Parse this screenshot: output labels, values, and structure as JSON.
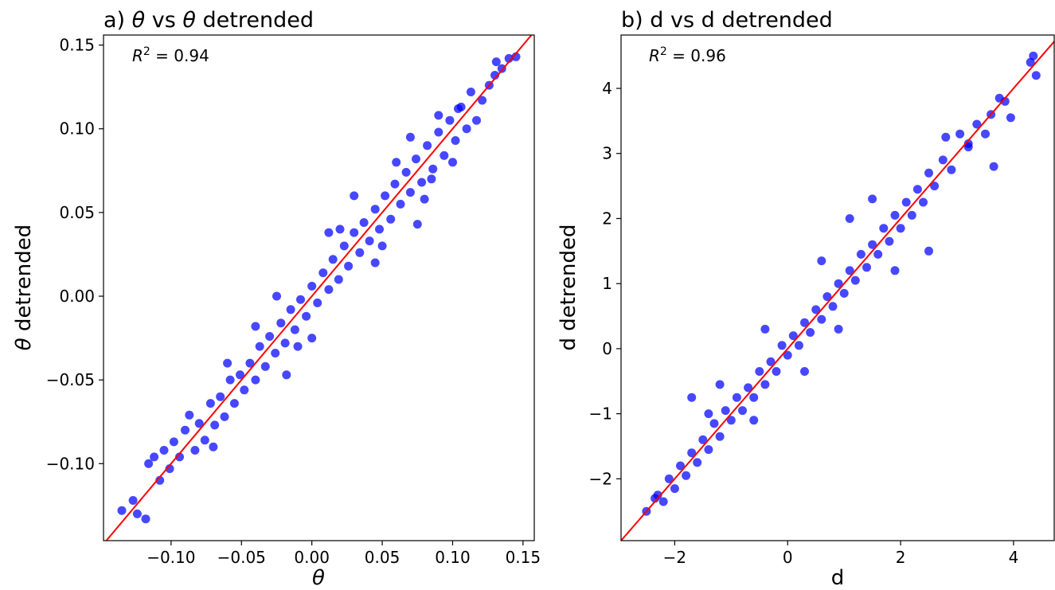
{
  "chart_data": [
    {
      "type": "scatter",
      "title_prefix": "a) ",
      "title_sym1": "θ",
      "title_mid": " vs ",
      "title_sym2": "θ",
      "title_suffix": " detrended",
      "xlabel_sym": "θ",
      "xlabel_text": "",
      "ylabel_sym": "θ",
      "ylabel_text": " detrended",
      "annotation": {
        "var": "R",
        "exp": "2",
        "rest": " = 0.94"
      },
      "xlim": [
        -0.148,
        0.158
      ],
      "ylim": [
        -0.146,
        0.156
      ],
      "xticks": [
        -0.1,
        -0.05,
        0.0,
        0.05,
        0.1,
        0.15
      ],
      "xtick_labels": [
        "−0.10",
        "−0.05",
        "0.00",
        "0.05",
        "0.10",
        "0.15"
      ],
      "yticks": [
        -0.1,
        -0.05,
        0.0,
        0.05,
        0.1,
        0.15
      ],
      "ytick_labels": [
        "−0.10",
        "−0.05",
        "0.00",
        "0.05",
        "0.10",
        "0.15"
      ],
      "point_color": "#0000ff",
      "line_color": "#ff0000",
      "fit_line": {
        "slope": 1,
        "intercept": 0
      },
      "series": [
        {
          "points": [
            [
              -0.135,
              -0.128
            ],
            [
              -0.127,
              -0.122
            ],
            [
              -0.124,
              -0.13
            ],
            [
              -0.118,
              -0.133
            ],
            [
              -0.116,
              -0.1
            ],
            [
              -0.112,
              -0.096
            ],
            [
              -0.108,
              -0.11
            ],
            [
              -0.105,
              -0.092
            ],
            [
              -0.101,
              -0.103
            ],
            [
              -0.098,
              -0.087
            ],
            [
              -0.094,
              -0.096
            ],
            [
              -0.09,
              -0.08
            ],
            [
              -0.087,
              -0.071
            ],
            [
              -0.083,
              -0.092
            ],
            [
              -0.08,
              -0.076
            ],
            [
              -0.076,
              -0.086
            ],
            [
              -0.072,
              -0.064
            ],
            [
              -0.069,
              -0.077
            ],
            [
              -0.065,
              -0.06
            ],
            [
              -0.062,
              -0.072
            ],
            [
              -0.058,
              -0.05
            ],
            [
              -0.055,
              -0.064
            ],
            [
              -0.051,
              -0.047
            ],
            [
              -0.048,
              -0.056
            ],
            [
              -0.044,
              -0.04
            ],
            [
              -0.04,
              -0.05
            ],
            [
              -0.037,
              -0.03
            ],
            [
              -0.033,
              -0.042
            ],
            [
              -0.03,
              -0.024
            ],
            [
              -0.026,
              -0.034
            ],
            [
              -0.022,
              -0.016
            ],
            [
              -0.019,
              -0.028
            ],
            [
              -0.015,
              -0.008
            ],
            [
              -0.012,
              -0.02
            ],
            [
              -0.008,
              -0.002
            ],
            [
              -0.004,
              -0.012
            ],
            [
              0.0,
              0.006
            ],
            [
              0.004,
              -0.004
            ],
            [
              0.008,
              0.014
            ],
            [
              0.012,
              0.004
            ],
            [
              0.015,
              0.022
            ],
            [
              0.019,
              0.01
            ],
            [
              0.023,
              0.03
            ],
            [
              0.026,
              0.018
            ],
            [
              0.03,
              0.038
            ],
            [
              0.034,
              0.026
            ],
            [
              0.037,
              0.044
            ],
            [
              0.041,
              0.033
            ],
            [
              0.045,
              0.052
            ],
            [
              0.048,
              0.04
            ],
            [
              0.052,
              0.06
            ],
            [
              0.056,
              0.046
            ],
            [
              0.059,
              0.067
            ],
            [
              0.063,
              0.055
            ],
            [
              0.067,
              0.074
            ],
            [
              0.07,
              0.062
            ],
            [
              0.074,
              0.082
            ],
            [
              0.078,
              0.068
            ],
            [
              0.082,
              0.09
            ],
            [
              0.086,
              0.076
            ],
            [
              0.09,
              0.098
            ],
            [
              0.094,
              0.084
            ],
            [
              0.098,
              0.105
            ],
            [
              0.102,
              0.093
            ],
            [
              0.106,
              0.113
            ],
            [
              0.11,
              0.1
            ],
            [
              0.113,
              0.122
            ],
            [
              0.117,
              0.105
            ],
            [
              0.121,
              0.117
            ],
            [
              0.126,
              0.126
            ],
            [
              0.13,
              0.132
            ],
            [
              0.135,
              0.136
            ],
            [
              0.14,
              0.142
            ],
            [
              0.145,
              0.143
            ],
            [
              0.131,
              0.14
            ],
            [
              -0.04,
              -0.018
            ],
            [
              -0.01,
              -0.03
            ],
            [
              0.02,
              0.04
            ],
            [
              0.05,
              0.03
            ],
            [
              0.06,
              0.08
            ],
            [
              0.08,
              0.058
            ],
            [
              -0.06,
              -0.04
            ],
            [
              -0.07,
              -0.09
            ],
            [
              0.03,
              0.06
            ],
            [
              0.0,
              -0.025
            ],
            [
              -0.025,
              0.0
            ],
            [
              0.045,
              0.02
            ],
            [
              0.07,
              0.095
            ],
            [
              0.085,
              0.07
            ],
            [
              0.1,
              0.08
            ],
            [
              0.104,
              0.112
            ],
            [
              0.09,
              0.108
            ],
            [
              0.075,
              0.043
            ],
            [
              0.012,
              0.038
            ],
            [
              -0.018,
              -0.047
            ]
          ]
        }
      ]
    },
    {
      "type": "scatter",
      "title_prefix": "b) ",
      "title_sym1": "",
      "title_mid": "d vs d",
      "title_sym2": "",
      "title_suffix": " detrended",
      "xlabel_sym": "",
      "xlabel_text": "d",
      "ylabel_sym": "",
      "ylabel_text": "d detrended",
      "annotation": {
        "var": "R",
        "exp": "2",
        "rest": " = 0.96"
      },
      "xlim": [
        -2.95,
        4.72
      ],
      "ylim": [
        -2.95,
        4.82
      ],
      "xticks": [
        -2,
        0,
        2,
        4
      ],
      "xtick_labels": [
        "−2",
        "0",
        "2",
        "4"
      ],
      "yticks": [
        -2,
        -1,
        0,
        1,
        2,
        3,
        4
      ],
      "ytick_labels": [
        "−2",
        "−1",
        "0",
        "1",
        "2",
        "3",
        "4"
      ],
      "point_color": "#0000ff",
      "line_color": "#ff0000",
      "fit_line": {
        "slope": 1,
        "intercept": 0
      },
      "series": [
        {
          "points": [
            [
              -2.5,
              -2.5
            ],
            [
              -2.35,
              -2.3
            ],
            [
              -2.2,
              -2.35
            ],
            [
              -2.1,
              -2.0
            ],
            [
              -2.0,
              -2.15
            ],
            [
              -1.9,
              -1.8
            ],
            [
              -1.8,
              -1.95
            ],
            [
              -1.7,
              -1.6
            ],
            [
              -1.6,
              -1.75
            ],
            [
              -1.5,
              -1.4
            ],
            [
              -1.4,
              -1.55
            ],
            [
              -1.3,
              -1.15
            ],
            [
              -1.2,
              -1.35
            ],
            [
              -1.1,
              -0.95
            ],
            [
              -1.0,
              -1.1
            ],
            [
              -0.9,
              -0.75
            ],
            [
              -0.8,
              -0.95
            ],
            [
              -0.7,
              -0.6
            ],
            [
              -0.6,
              -0.75
            ],
            [
              -0.5,
              -0.35
            ],
            [
              -0.4,
              -0.55
            ],
            [
              -0.3,
              -0.2
            ],
            [
              -0.2,
              -0.35
            ],
            [
              -0.1,
              0.05
            ],
            [
              0.0,
              -0.1
            ],
            [
              0.1,
              0.2
            ],
            [
              0.2,
              0.05
            ],
            [
              0.3,
              0.4
            ],
            [
              0.4,
              0.25
            ],
            [
              0.5,
              0.6
            ],
            [
              0.6,
              0.45
            ],
            [
              0.7,
              0.8
            ],
            [
              0.8,
              0.65
            ],
            [
              0.9,
              1.0
            ],
            [
              1.0,
              0.85
            ],
            [
              1.1,
              1.2
            ],
            [
              1.2,
              1.05
            ],
            [
              1.3,
              1.45
            ],
            [
              1.4,
              1.25
            ],
            [
              1.5,
              1.6
            ],
            [
              1.6,
              1.45
            ],
            [
              1.7,
              1.85
            ],
            [
              1.8,
              1.65
            ],
            [
              1.9,
              2.05
            ],
            [
              2.0,
              1.85
            ],
            [
              2.1,
              2.25
            ],
            [
              2.2,
              2.05
            ],
            [
              2.3,
              2.45
            ],
            [
              2.4,
              2.25
            ],
            [
              2.5,
              2.7
            ],
            [
              2.6,
              2.5
            ],
            [
              2.75,
              2.9
            ],
            [
              2.9,
              2.75
            ],
            [
              3.05,
              3.3
            ],
            [
              3.2,
              3.1
            ],
            [
              3.35,
              3.45
            ],
            [
              3.5,
              3.3
            ],
            [
              3.6,
              3.6
            ],
            [
              3.75,
              3.85
            ],
            [
              3.85,
              3.8
            ],
            [
              4.3,
              4.4
            ],
            [
              4.35,
              4.5
            ],
            [
              4.4,
              4.2
            ],
            [
              3.65,
              2.8
            ],
            [
              3.95,
              3.55
            ],
            [
              -1.7,
              -0.75
            ],
            [
              -1.2,
              -0.55
            ],
            [
              -0.6,
              -1.1
            ],
            [
              0.3,
              -0.35
            ],
            [
              1.9,
              1.2
            ],
            [
              1.1,
              2.0
            ],
            [
              2.5,
              1.5
            ],
            [
              -0.4,
              0.3
            ],
            [
              -1.4,
              -1.0
            ],
            [
              0.9,
              0.3
            ],
            [
              1.5,
              2.3
            ],
            [
              2.8,
              3.25
            ],
            [
              3.2,
              3.15
            ],
            [
              -2.3,
              -2.25
            ],
            [
              0.6,
              1.35
            ]
          ]
        }
      ]
    }
  ]
}
